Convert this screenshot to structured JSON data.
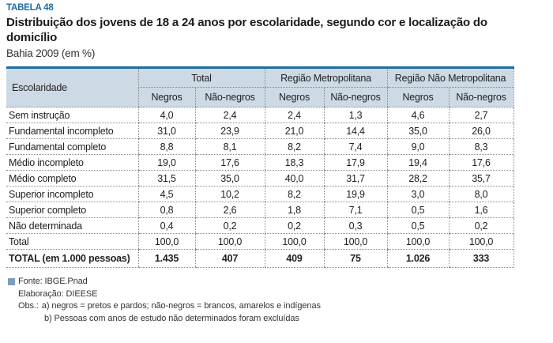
{
  "colors": {
    "accent_blue": "#1a6ca3",
    "header_bg": "#cdd9e4",
    "border_dotted": "#8a8a8a",
    "footer_bullet": "#7e9dbe"
  },
  "header": {
    "table_label": "TABELA 48",
    "title": "Distribuição dos jovens de 18 a 24 anos por escolaridade, segundo cor e localização do domicílio",
    "subtitle": "Bahia 2009 (em %)"
  },
  "table": {
    "row_header": "Escolaridade",
    "groups": [
      {
        "label": "Total"
      },
      {
        "label": "Região Metropolitana"
      },
      {
        "label": "Região Não Metropolitana"
      }
    ],
    "subheaders": [
      "Negros",
      "Não-negros",
      "Negros",
      "Não-negros",
      "Negros",
      "Não-negros"
    ],
    "rows": [
      {
        "label": "Sem instrução",
        "values": [
          "4,0",
          "2,4",
          "2,4",
          "1,3",
          "4,6",
          "2,7"
        ]
      },
      {
        "label": "Fundamental incompleto",
        "values": [
          "31,0",
          "23,9",
          "21,0",
          "14,4",
          "35,0",
          "26,0"
        ]
      },
      {
        "label": "Fundamental completo",
        "values": [
          "8,8",
          "8,1",
          "8,2",
          "7,4",
          "9,0",
          "8,3"
        ]
      },
      {
        "label": "Médio incompleto",
        "values": [
          "19,0",
          "17,6",
          "18,3",
          "17,9",
          "19,4",
          "17,6"
        ]
      },
      {
        "label": "Médio completo",
        "values": [
          "31,5",
          "35,0",
          "40,0",
          "31,7",
          "28,2",
          "35,7"
        ]
      },
      {
        "label": "Superior incompleto",
        "values": [
          "4,5",
          "10,2",
          "8,2",
          "19,9",
          "3,0",
          "8,0"
        ]
      },
      {
        "label": "Superior completo",
        "values": [
          "0,8",
          "2,6",
          "1,8",
          "7,1",
          "0,5",
          "1,6"
        ]
      },
      {
        "label": "Não determinada",
        "values": [
          "0,4",
          "0,2",
          "0,2",
          "0,3",
          "0,5",
          "0,2"
        ]
      },
      {
        "label": "Total",
        "values": [
          "100,0",
          "100,0",
          "100,0",
          "100,0",
          "100,0",
          "100,0"
        ]
      },
      {
        "label": "TOTAL (em 1.000 pessoas)",
        "values": [
          "1.435",
          "407",
          "409",
          "75",
          "1.026",
          "333"
        ],
        "bold": true
      }
    ]
  },
  "footer": {
    "source": "Fonte: IBGE.Pnad",
    "elaboration": "Elaboração: DIEESE",
    "obs_label": "Obs.:",
    "obs_a": "a) negros = pretos e pardos; não-negros = brancos, amarelos e indígenas",
    "obs_b": "b)  Pessoas com anos de estudo não determinados foram excluídas"
  }
}
